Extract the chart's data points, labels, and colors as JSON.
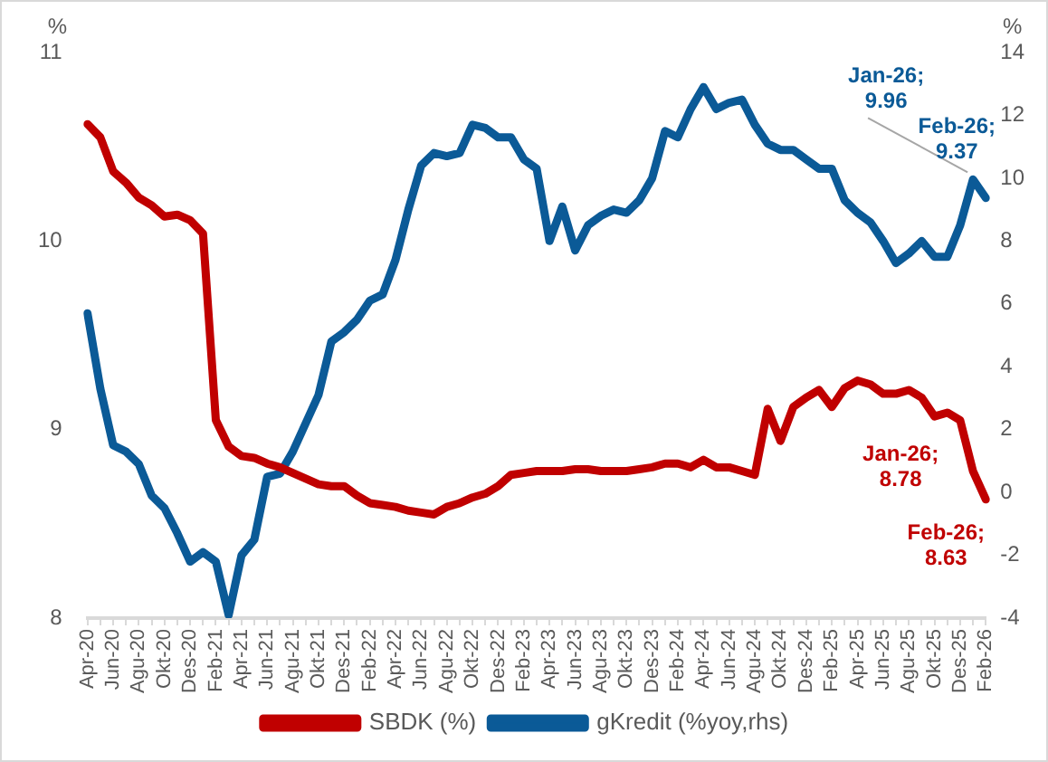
{
  "chart_data": {
    "type": "line",
    "ylabel": "%",
    "y2label": "%",
    "categories": [
      "Apr-20",
      null,
      "Jun-20",
      null,
      "Agu-20",
      null,
      "Okt-20",
      null,
      "Des-20",
      null,
      "Feb-21",
      null,
      "Apr-21",
      null,
      "Jun-21",
      null,
      "Agu-21",
      null,
      "Okt-21",
      null,
      "Des-21",
      null,
      "Feb-22",
      null,
      "Apr-22",
      null,
      "Jun-22",
      null,
      "Agu-22",
      null,
      "Okt-22",
      null,
      "Des-22",
      null,
      "Feb-23",
      null,
      "Apr-23",
      null,
      "Jun-23",
      null,
      "Agu-23",
      null,
      "Okt-23",
      null,
      "Des-23",
      null,
      "Feb-24",
      null,
      "Apr-24",
      null,
      "Jun-24",
      null,
      "Agu-24",
      null,
      "Okt-24",
      null,
      "Des-24",
      null,
      "Feb-25",
      null,
      "Apr-25",
      null,
      "Jun-25",
      null,
      "Agu-25",
      null,
      "Okt-25",
      null,
      "Des-25",
      null,
      "Feb-26"
    ],
    "series": [
      {
        "name": "SBDK (%)",
        "color": "#c00000",
        "values": [
          10.62,
          10.55,
          10.37,
          10.31,
          10.23,
          10.19,
          10.13,
          10.14,
          10.11,
          10.04,
          9.05,
          8.91,
          8.86,
          8.85,
          8.82,
          8.8,
          8.77,
          8.74,
          8.71,
          8.7,
          8.7,
          8.65,
          8.61,
          8.6,
          8.59,
          8.57,
          8.56,
          8.55,
          8.59,
          8.61,
          8.64,
          8.66,
          8.7,
          8.76,
          8.77,
          8.78,
          8.78,
          8.78,
          8.79,
          8.79,
          8.78,
          8.78,
          8.78,
          8.79,
          8.8,
          8.82,
          8.82,
          8.8,
          8.84,
          8.8,
          8.8,
          8.78,
          8.76,
          9.11,
          8.94,
          9.12,
          9.17,
          9.21,
          9.12,
          9.22,
          9.26,
          9.24,
          9.19,
          9.19,
          9.21,
          9.17,
          9.07,
          9.09,
          9.05,
          8.78,
          8.63
        ],
        "value_labels": [
          null,
          null,
          null,
          null,
          null,
          null,
          null,
          null,
          null,
          null,
          null,
          null,
          null,
          null,
          null,
          null,
          null,
          null,
          null,
          null,
          null,
          null,
          null,
          null,
          null,
          null,
          null,
          null,
          null,
          null,
          null,
          null,
          null,
          null,
          null,
          null,
          null,
          null,
          null,
          null,
          null,
          null,
          null,
          null,
          null,
          null,
          null,
          null,
          null,
          null,
          null,
          null,
          null,
          null,
          null,
          null,
          null,
          null,
          null,
          null,
          null,
          null,
          null,
          null,
          null,
          null,
          null,
          null,
          null,
          "Jan-26;\n8.78",
          "Feb-26;\n8.63"
        ]
      },
      {
        "name": "gKredit (%yoy,rhs)",
        "color": "#0b5a97",
        "axis": "y2",
        "values": [
          5.7,
          3.3,
          1.5,
          1.3,
          0.9,
          -0.1,
          -0.5,
          -1.3,
          -2.2,
          -1.9,
          -2.2,
          -3.9,
          -2.0,
          -1.5,
          0.5,
          0.6,
          1.3,
          2.2,
          3.1,
          4.8,
          5.1,
          5.5,
          6.1,
          6.3,
          7.4,
          9.0,
          10.4,
          10.8,
          10.7,
          10.8,
          11.7,
          11.6,
          11.3,
          11.3,
          10.6,
          10.3,
          8.0,
          9.1,
          7.7,
          8.5,
          8.8,
          9.0,
          8.9,
          9.3,
          10.0,
          11.5,
          11.3,
          12.2,
          12.9,
          12.2,
          12.4,
          12.5,
          11.7,
          11.1,
          10.9,
          10.9,
          10.6,
          10.3,
          10.3,
          9.3,
          8.9,
          8.6,
          8.0,
          7.3,
          7.6,
          8.0,
          7.5,
          7.5,
          8.5,
          9.96,
          9.37
        ],
        "value_labels": [
          null,
          null,
          null,
          null,
          null,
          null,
          null,
          null,
          null,
          null,
          null,
          null,
          null,
          null,
          null,
          null,
          null,
          null,
          null,
          null,
          null,
          null,
          null,
          null,
          null,
          null,
          null,
          null,
          null,
          null,
          null,
          null,
          null,
          null,
          null,
          null,
          null,
          null,
          null,
          null,
          null,
          null,
          null,
          null,
          null,
          null,
          null,
          null,
          null,
          null,
          null,
          null,
          null,
          null,
          null,
          null,
          null,
          null,
          null,
          null,
          null,
          null,
          null,
          null,
          null,
          null,
          null,
          null,
          null,
          "Jan-26;\n9.96",
          "Feb-26;\n9.37"
        ]
      }
    ],
    "ylim": [
      8,
      11
    ],
    "yticks": [
      8,
      9,
      10,
      11
    ],
    "y2lim": [
      -4,
      14
    ],
    "y2ticks": [
      -4,
      -2,
      0,
      2,
      4,
      6,
      8,
      10,
      12,
      14
    ],
    "grid": false,
    "legend": "bottom",
    "marker": "none",
    "line_style": "solid"
  }
}
